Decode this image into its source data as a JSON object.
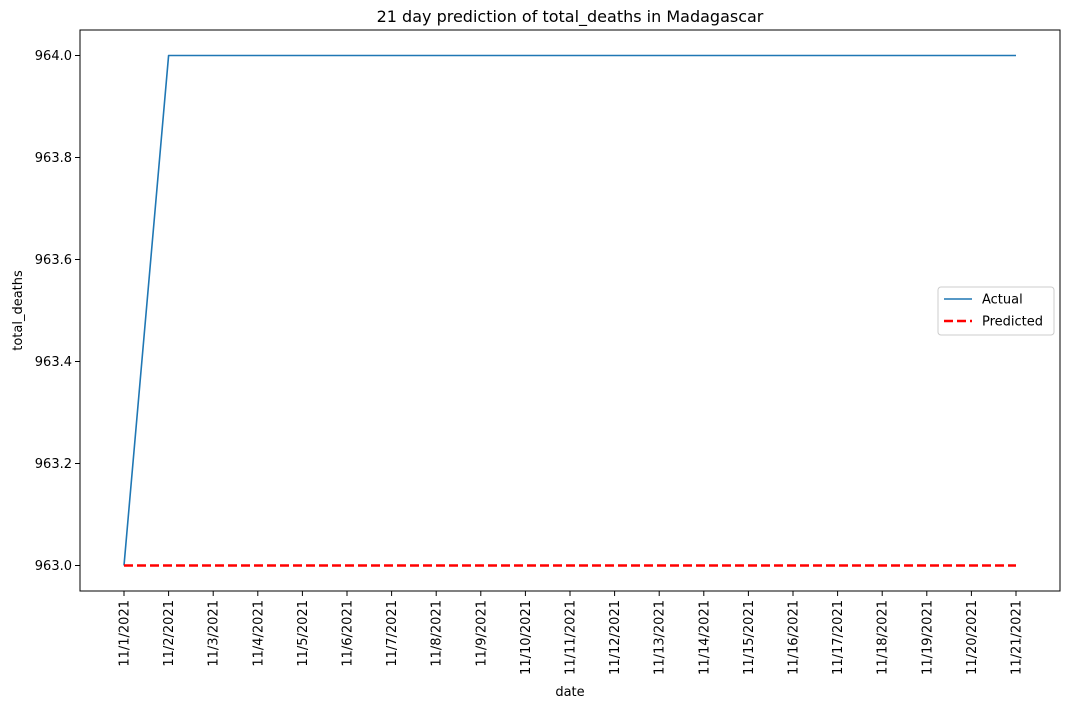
{
  "chart_data": {
    "type": "line",
    "title": "21 day prediction of total_deaths in Madagascar",
    "xlabel": "date",
    "ylabel": "total_deaths",
    "categories": [
      "11/1/2021",
      "11/2/2021",
      "11/3/2021",
      "11/4/2021",
      "11/5/2021",
      "11/6/2021",
      "11/7/2021",
      "11/8/2021",
      "11/9/2021",
      "11/10/2021",
      "11/11/2021",
      "11/12/2021",
      "11/13/2021",
      "11/14/2021",
      "11/15/2021",
      "11/16/2021",
      "11/17/2021",
      "11/18/2021",
      "11/19/2021",
      "11/20/2021",
      "11/21/2021"
    ],
    "ylim": [
      962.95,
      964.05
    ],
    "yticks": [
      "963.0",
      "963.2",
      "963.4",
      "963.6",
      "963.8",
      "964.0"
    ],
    "series": [
      {
        "name": "Actual",
        "color": "#1f77b4",
        "style": "solid",
        "values": [
          963,
          964,
          964,
          964,
          964,
          964,
          964,
          964,
          964,
          964,
          964,
          964,
          964,
          964,
          964,
          964,
          964,
          964,
          964,
          964,
          964
        ]
      },
      {
        "name": "Predicted",
        "color": "#ff0000",
        "style": "dashed",
        "values": [
          963,
          963,
          963,
          963,
          963,
          963,
          963,
          963,
          963,
          963,
          963,
          963,
          963,
          963,
          963,
          963,
          963,
          963,
          963,
          963,
          963
        ]
      }
    ],
    "legend_position": "center-right",
    "grid": false
  }
}
